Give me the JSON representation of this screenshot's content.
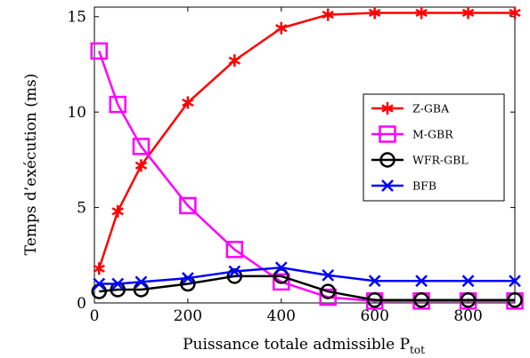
{
  "chart_data": {
    "type": "line",
    "title": "",
    "xlabel": "Puissance totale admissible P",
    "xlabel_sub": "tot",
    "ylabel": "Temps d’exécution (ms)",
    "xlim": [
      0,
      900
    ],
    "ylim": [
      0,
      15.5
    ],
    "xticks": [
      0,
      200,
      400,
      600,
      800
    ],
    "yticks": [
      0,
      5,
      10,
      15
    ],
    "grid": false,
    "legend_position": "right",
    "x": [
      10,
      50,
      100,
      200,
      300,
      400,
      500,
      600,
      700,
      800,
      900
    ],
    "series": [
      {
        "name": "Z-GBA",
        "color": "#ff0000",
        "marker": "asterisk",
        "values": [
          1.8,
          4.8,
          7.2,
          10.5,
          12.7,
          14.4,
          15.1,
          15.2,
          15.2,
          15.2,
          15.2
        ]
      },
      {
        "name": "M-GBR",
        "color": "#ff00ff",
        "marker": "square",
        "values": [
          13.2,
          10.4,
          8.2,
          5.1,
          2.8,
          1.1,
          0.3,
          0.1,
          0.1,
          0.1,
          0.1
        ]
      },
      {
        "name": "WFR-GBL",
        "color": "#000000",
        "marker": "circle",
        "values": [
          0.6,
          0.7,
          0.7,
          1.0,
          1.4,
          1.4,
          0.6,
          0.15,
          0.15,
          0.15,
          0.15
        ]
      },
      {
        "name": "BFB",
        "color": "#0000ff",
        "marker": "x",
        "values": [
          1.0,
          1.0,
          1.1,
          1.3,
          1.65,
          1.85,
          1.45,
          1.15,
          1.15,
          1.15,
          1.15
        ]
      }
    ]
  }
}
